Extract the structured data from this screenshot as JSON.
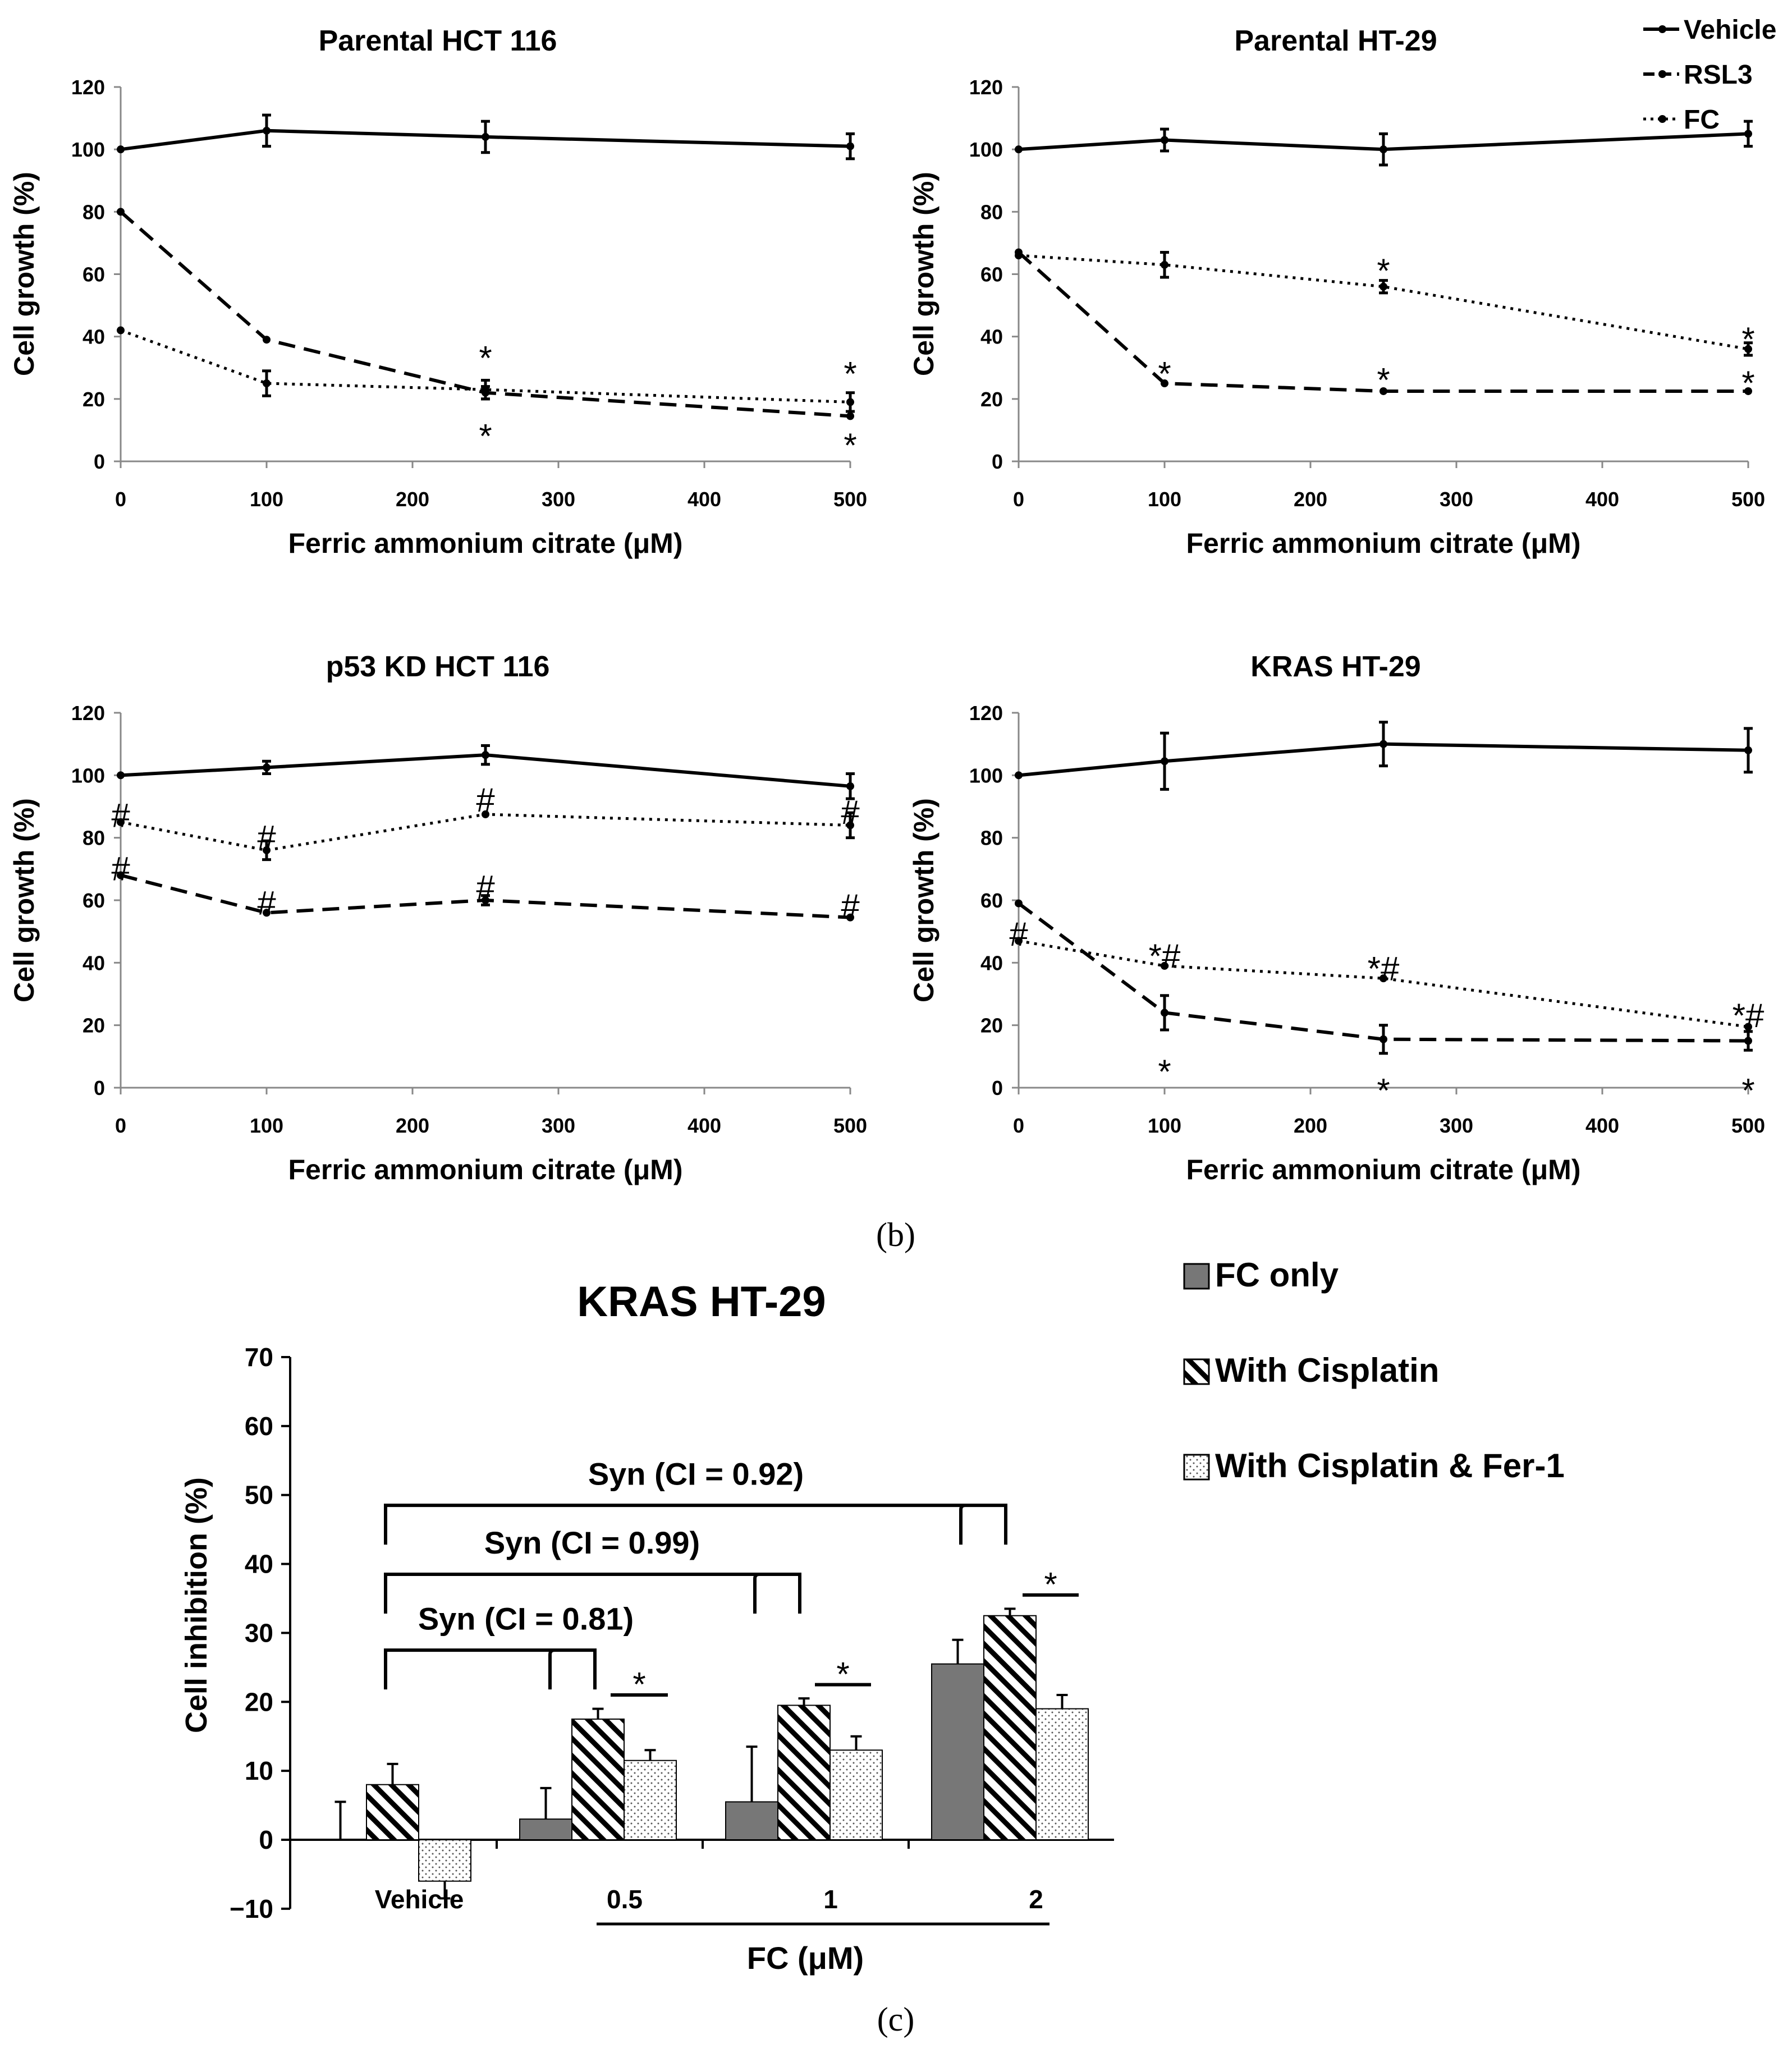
{
  "panel_labels": [
    "(b)",
    "(c)"
  ],
  "legend_b": [
    "Vehicle",
    "RSL3",
    "FC"
  ],
  "legend_c": [
    "FC only",
    "With Cisplatin",
    "With Cisplatin & Fer-1"
  ],
  "chart_data": [
    {
      "type": "line",
      "title": "Parental HCT 116",
      "xlabel": "Ferric ammonium citrate (μM)",
      "ylabel": "Cell growth (%)",
      "xlim": [
        0,
        500
      ],
      "ylim": [
        0,
        120
      ],
      "xticks": [
        0,
        100,
        200,
        300,
        400,
        500
      ],
      "yticks": [
        0,
        20,
        40,
        60,
        80,
        100,
        120
      ],
      "x": [
        0,
        100,
        250,
        500
      ],
      "series": [
        {
          "name": "Vehicle",
          "style": "solid",
          "values": [
            100,
            106,
            104,
            101
          ],
          "errors": [
            0,
            5,
            5,
            4
          ]
        },
        {
          "name": "RSL3",
          "style": "dashed",
          "values": [
            80,
            39,
            22,
            14.5
          ],
          "errors": [
            0,
            0,
            2,
            0
          ]
        },
        {
          "name": "FC",
          "style": "dotted",
          "values": [
            42,
            25,
            23,
            19
          ],
          "errors": [
            0,
            4,
            3,
            3
          ]
        }
      ],
      "annotations": [
        {
          "text": "*",
          "x": 250,
          "y": 33
        },
        {
          "text": "*",
          "x": 250,
          "y": 8
        },
        {
          "text": "*",
          "x": 500,
          "y": 28
        },
        {
          "text": "*",
          "x": 500,
          "y": 5
        }
      ]
    },
    {
      "type": "line",
      "title": "Parental HT-29",
      "xlabel": "Ferric ammonium citrate (μM)",
      "ylabel": "Cell growth (%)",
      "xlim": [
        0,
        500
      ],
      "ylim": [
        0,
        120
      ],
      "xticks": [
        0,
        100,
        200,
        300,
        400,
        500
      ],
      "yticks": [
        0,
        20,
        40,
        60,
        80,
        100,
        120
      ],
      "x": [
        0,
        100,
        250,
        500
      ],
      "series": [
        {
          "name": "Vehicle",
          "style": "solid",
          "values": [
            100,
            103,
            100,
            105
          ],
          "errors": [
            0,
            3.5,
            5,
            4
          ]
        },
        {
          "name": "RSL3",
          "style": "dashed",
          "values": [
            67,
            25,
            22.5,
            22.5
          ],
          "errors": [
            0,
            0,
            0,
            0
          ]
        },
        {
          "name": "FC",
          "style": "dotted",
          "values": [
            66,
            63,
            56,
            36
          ],
          "errors": [
            0,
            4,
            2,
            2
          ]
        }
      ],
      "annotations": [
        {
          "text": "*",
          "x": 250,
          "y": 61
        },
        {
          "text": "*",
          "x": 100,
          "y": 28
        },
        {
          "text": "*",
          "x": 250,
          "y": 26
        },
        {
          "text": "*",
          "x": 500,
          "y": 39
        },
        {
          "text": "*",
          "x": 500,
          "y": 25
        }
      ]
    },
    {
      "type": "line",
      "title": "p53 KD HCT 116",
      "xlabel": "Ferric ammonium citrate (μM)",
      "ylabel": "Cell growth (%)",
      "xlim": [
        0,
        500
      ],
      "ylim": [
        0,
        120
      ],
      "xticks": [
        0,
        100,
        200,
        300,
        400,
        500
      ],
      "yticks": [
        0,
        20,
        40,
        60,
        80,
        100,
        120
      ],
      "x": [
        0,
        100,
        250,
        500
      ],
      "series": [
        {
          "name": "Vehicle",
          "style": "solid",
          "values": [
            100,
            102.5,
            106.5,
            96.5
          ],
          "errors": [
            0,
            2,
            3,
            4
          ]
        },
        {
          "name": "RSL3",
          "style": "dashed",
          "values": [
            68,
            56,
            60,
            54.5
          ],
          "errors": [
            0,
            0,
            1.5,
            0
          ]
        },
        {
          "name": "FC",
          "style": "dotted",
          "values": [
            85,
            76,
            87.5,
            84
          ],
          "errors": [
            0,
            3,
            0,
            4
          ]
        }
      ],
      "annotations": [
        {
          "text": "#",
          "x": 0,
          "y": 87
        },
        {
          "text": "#",
          "x": 0,
          "y": 70
        },
        {
          "text": "#",
          "x": 100,
          "y": 80
        },
        {
          "text": "#",
          "x": 100,
          "y": 59
        },
        {
          "text": "#",
          "x": 250,
          "y": 92
        },
        {
          "text": "#",
          "x": 250,
          "y": 64
        },
        {
          "text": "#",
          "x": 500,
          "y": 88
        },
        {
          "text": "#",
          "x": 500,
          "y": 58
        }
      ]
    },
    {
      "type": "line",
      "title": "KRAS HT-29",
      "xlabel": "Ferric ammonium citrate (μM)",
      "ylabel": "Cell growth (%)",
      "xlim": [
        0,
        500
      ],
      "ylim": [
        0,
        120
      ],
      "xticks": [
        0,
        100,
        200,
        300,
        400,
        500
      ],
      "yticks": [
        0,
        20,
        40,
        60,
        80,
        100,
        120
      ],
      "x": [
        0,
        100,
        250,
        500
      ],
      "series": [
        {
          "name": "Vehicle",
          "style": "solid",
          "values": [
            100,
            104.5,
            110,
            108
          ],
          "errors": [
            0,
            9,
            7,
            7
          ]
        },
        {
          "name": "RSL3",
          "style": "dashed",
          "values": [
            59,
            24,
            15.5,
            15
          ],
          "errors": [
            0,
            5.5,
            4.5,
            3
          ]
        },
        {
          "name": "FC",
          "style": "dotted",
          "values": [
            47,
            39,
            35,
            19.5
          ],
          "errors": [
            0,
            0,
            0,
            0
          ]
        }
      ],
      "annotations": [
        {
          "text": "#",
          "x": 0,
          "y": 49
        },
        {
          "text": "*#",
          "x": 100,
          "y": 42
        },
        {
          "text": "*",
          "x": 100,
          "y": 5
        },
        {
          "text": "*#",
          "x": 250,
          "y": 38
        },
        {
          "text": "*",
          "x": 250,
          "y": -1
        },
        {
          "text": "*#",
          "x": 500,
          "y": 23
        },
        {
          "text": "*",
          "x": 500,
          "y": -1
        }
      ]
    },
    {
      "type": "bar",
      "title": "KRAS HT-29",
      "ylabel": "Cell inhibition (%)",
      "xlabel": "FC (μM)",
      "ylim": [
        -10,
        70
      ],
      "yticks": [
        -10,
        0,
        10,
        20,
        30,
        40,
        50,
        60,
        70
      ],
      "categories": [
        "Vehicle",
        "0.5",
        "1",
        "2"
      ],
      "series": [
        {
          "name": "FC only",
          "pattern": "solid-gray",
          "values": [
            0,
            3,
            5.5,
            25.5
          ],
          "errors": [
            5.5,
            4.5,
            8,
            3.5
          ]
        },
        {
          "name": "With Cisplatin",
          "pattern": "hatched",
          "values": [
            8,
            17.5,
            19.5,
            32.5
          ],
          "errors": [
            3,
            1.5,
            1,
            1
          ]
        },
        {
          "name": "With Cisplatin & Fer-1",
          "pattern": "dotted",
          "values": [
            -6,
            11.5,
            13,
            19
          ],
          "errors": [
            2.5,
            1.5,
            2,
            2
          ]
        }
      ],
      "synergy_labels": [
        "Syn (CI = 0.81)",
        "Syn (CI = 0.99)",
        "Syn (CI = 0.92)"
      ],
      "significance": [
        "*",
        "*",
        "*"
      ]
    }
  ]
}
